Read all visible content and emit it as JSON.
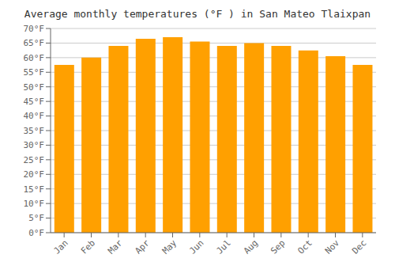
{
  "chart_data": {
    "type": "bar",
    "title": "Average monthly temperatures (°F ) in San Mateo Tlaixpan",
    "categories": [
      "Jan",
      "Feb",
      "Mar",
      "Apr",
      "May",
      "Jun",
      "Jul",
      "Aug",
      "Sep",
      "Oct",
      "Nov",
      "Dec"
    ],
    "values": [
      57.5,
      60.0,
      64.0,
      66.5,
      67.0,
      65.5,
      64.0,
      65.0,
      64.0,
      62.5,
      60.5,
      57.5
    ],
    "color": "#FFA000",
    "ylim": [
      0,
      70
    ],
    "yticks": [
      {
        "value": 0,
        "label": "0°F"
      },
      {
        "value": 5,
        "label": "5°F"
      },
      {
        "value": 10,
        "label": "10°F"
      },
      {
        "value": 15,
        "label": "15°F"
      },
      {
        "value": 20,
        "label": "20°F"
      },
      {
        "value": 25,
        "label": "25°F"
      },
      {
        "value": 30,
        "label": "30°F"
      },
      {
        "value": 35,
        "label": "35°F"
      },
      {
        "value": 40,
        "label": "40°F"
      },
      {
        "value": 45,
        "label": "45°F"
      },
      {
        "value": 50,
        "label": "50°F"
      },
      {
        "value": 55,
        "label": "55°F"
      },
      {
        "value": 60,
        "label": "60°F"
      },
      {
        "value": 65,
        "label": "65°F"
      },
      {
        "value": 70,
        "label": "70°F"
      }
    ],
    "grid": true
  }
}
